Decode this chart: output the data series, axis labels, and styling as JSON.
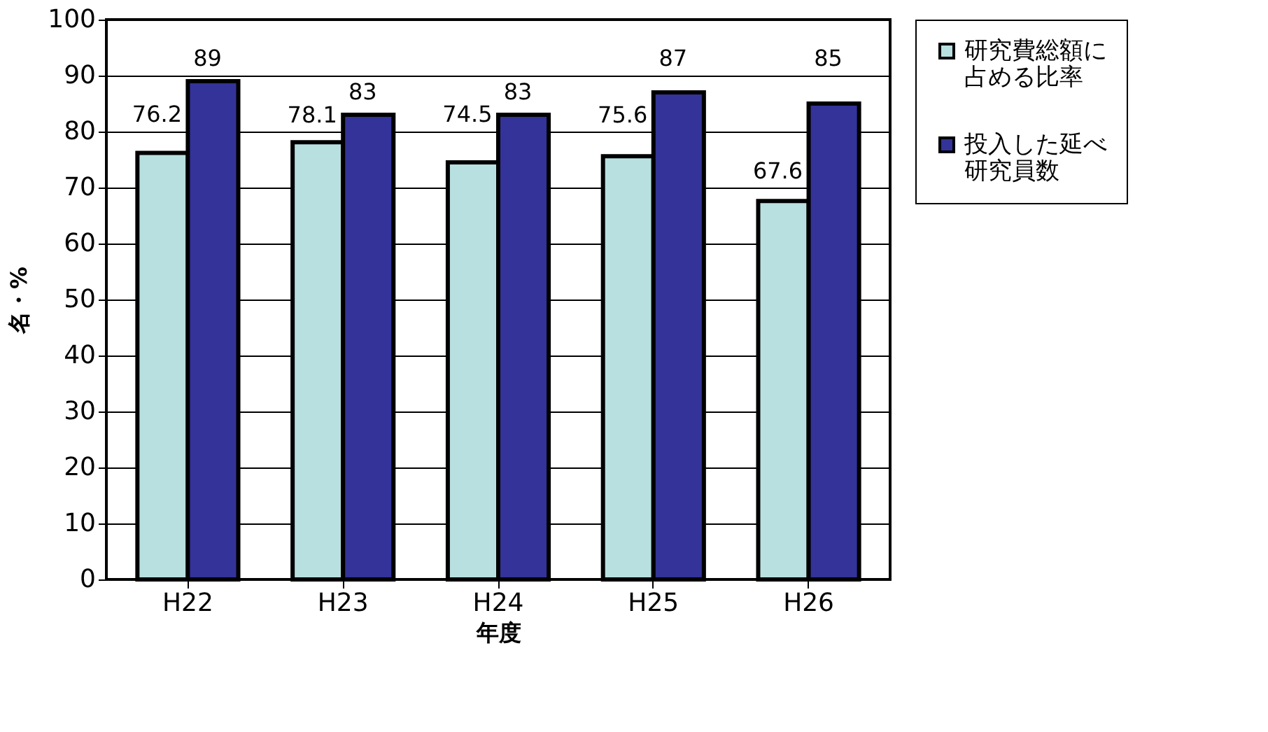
{
  "chart_data": {
    "type": "bar",
    "xlabel": "年度",
    "ylabel": "名・%",
    "categories": [
      "H22",
      "H23",
      "H24",
      "H25",
      "H26"
    ],
    "series": [
      {
        "name": "研究費総額に占める比率",
        "color": "#b8e0e0",
        "values": [
          76.2,
          78.1,
          74.5,
          75.6,
          67.6
        ]
      },
      {
        "name": "投入した延べ研究員数",
        "color": "#333399",
        "values": [
          89,
          83,
          83,
          87,
          85
        ]
      }
    ],
    "ylim": [
      0,
      100
    ],
    "yticks": [
      0,
      10,
      20,
      30,
      40,
      50,
      60,
      70,
      80,
      90,
      100
    ],
    "grid": "y",
    "legend": "right",
    "data_labels": true
  }
}
